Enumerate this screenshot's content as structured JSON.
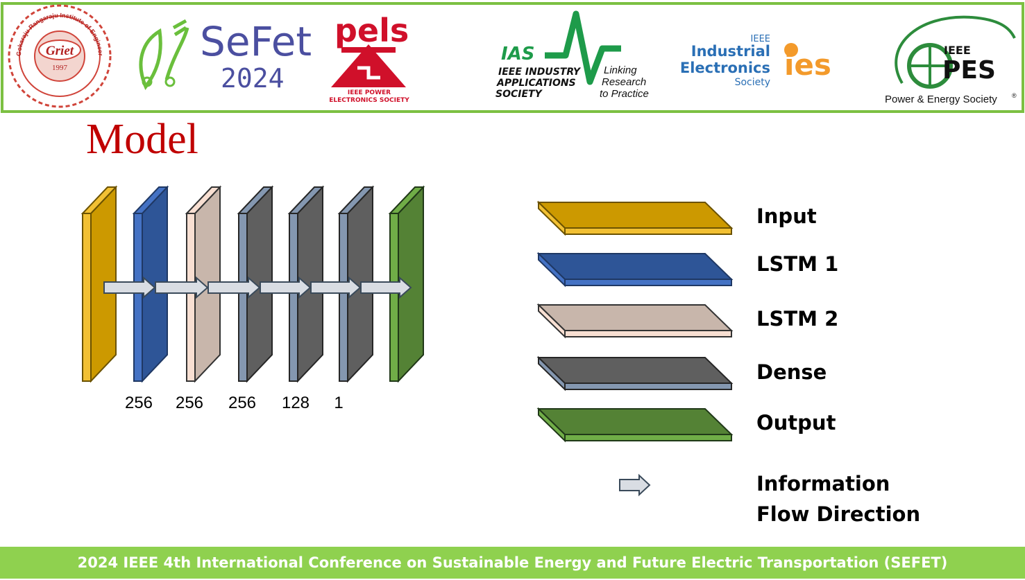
{
  "logos": {
    "griet": {
      "name": "Griet",
      "ring_text": "Gokaraju Rangaraju Institute of Engineering & Technology",
      "year": "1997"
    },
    "sefet": {
      "title": "SeFet",
      "year": "2024"
    },
    "pels": {
      "title": "pels",
      "line1": "IEEE POWER",
      "line2": "ELECTRONICS SOCIETY"
    },
    "ias": {
      "abbr": "IAS",
      "line1": "IEEE INDUSTRY",
      "line2": "APPLICATIONS",
      "line3": "SOCIETY",
      "tag1": "Linking",
      "tag2": "Research",
      "tag3": "to Practice"
    },
    "ies": {
      "ieee": "IEEE",
      "line1": "Industrial",
      "line2": "Electronics",
      "line3": "Society",
      "mark": "ies"
    },
    "pes": {
      "ieee": "IEEE",
      "abbr": "PES",
      "name": "Power & Energy Society",
      "reg": "®"
    }
  },
  "slide": {
    "title": "Model"
  },
  "layers": [
    {
      "type": "input"
    },
    {
      "type": "lstm1"
    },
    {
      "type": "lstm2"
    },
    {
      "type": "dense"
    },
    {
      "type": "dense"
    },
    {
      "type": "dense"
    },
    {
      "type": "output"
    }
  ],
  "layer_units": [
    "256",
    "256",
    "256",
    "128",
    "1"
  ],
  "legend": [
    {
      "label": "Input",
      "type": "input"
    },
    {
      "label": "LSTM 1",
      "type": "lstm1"
    },
    {
      "label": "LSTM 2",
      "type": "lstm2"
    },
    {
      "label": "Dense",
      "type": "dense"
    },
    {
      "label": "Output",
      "type": "output"
    }
  ],
  "legend_arrow": {
    "line1": "Information",
    "line2": "Flow Direction"
  },
  "colors": {
    "input": {
      "front": "#cc9900",
      "side": "#f2c033",
      "edge": "#6b5200"
    },
    "lstm1": {
      "front": "#2e5597",
      "side": "#4472c4",
      "edge": "#1f3864"
    },
    "lstm2": {
      "front": "#c8b6ab",
      "side": "#f8dfd2",
      "edge": "#333333"
    },
    "dense": {
      "front": "#5f5f5f",
      "side": "#8497b0",
      "edge": "#262626"
    },
    "output": {
      "front": "#548235",
      "side": "#70ad47",
      "edge": "#203818"
    },
    "arrow": {
      "fill": "#d9dde3",
      "edge": "#3a4a5a"
    },
    "header_border": "#7cc042",
    "footer_bg": "#8fd14f",
    "title": "#c00000"
  },
  "footer": {
    "text": "2024 IEEE 4th International Conference on Sustainable Energy and Future Electric Transportation (SEFET)"
  }
}
